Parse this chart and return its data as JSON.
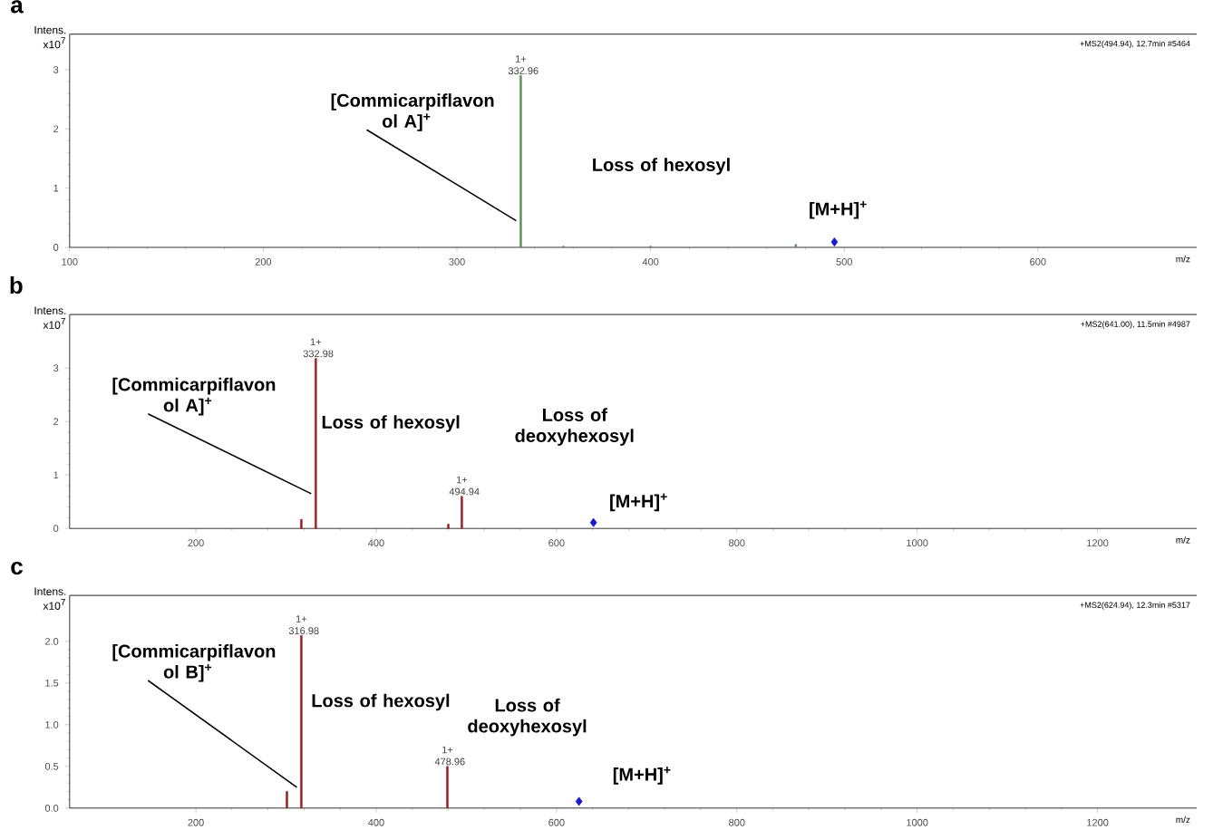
{
  "chart_data": [
    {
      "type": "bar",
      "title": "a",
      "subtitle": "+MS2(494.94), 12.7min #5464",
      "xlabel": "m/z",
      "ylabel": "Intens. x10$^{7}$",
      "xlim": [
        100,
        682
      ],
      "xticks": [
        100,
        200,
        300,
        400,
        500,
        600
      ],
      "ylim": [
        0,
        3.6
      ],
      "yticks": [
        0,
        1,
        2,
        3
      ],
      "series": [
        {
          "color": "#5e8f5e",
          "x": [
            332.96,
            355,
            400,
            475
          ],
          "values": [
            2.9,
            0.02,
            0.02,
            0.05
          ]
        },
        {
          "type": "scatter",
          "marker": "diamond",
          "color": "#1a1acc",
          "x": [
            494.94
          ],
          "values": [
            0.09
          ]
        }
      ],
      "annotations": [
        {
          "text": "[Commicarpiflavon ol A]$^{+}$",
          "x": 332.96,
          "y": 0.45
        },
        {
          "text": "1+ 332.96",
          "x": 332.96,
          "y": 2.9
        },
        "Loss of hexosyl",
        "[M+H]$^{+}$"
      ]
    },
    {
      "type": "bar",
      "title": "b",
      "subtitle": "+MS2(641.00), 11.5min #4987",
      "xlabel": "m/z",
      "ylabel": "Intens. x10$^{7}$",
      "xlim": [
        60,
        1310
      ],
      "xticks": [
        200,
        400,
        600,
        800,
        1000,
        1200
      ],
      "ylim": [
        0,
        4
      ],
      "yticks": [
        0,
        1,
        2,
        3
      ],
      "series": [
        {
          "color": "#9b1b1b",
          "x": [
            317,
            332.98,
            480,
            494.94
          ],
          "values": [
            0.17,
            3.18,
            0.08,
            0.6
          ]
        },
        {
          "type": "scatter",
          "marker": "diamond",
          "color": "#1a1acc",
          "x": [
            641.0
          ],
          "values": [
            0.11
          ]
        }
      ],
      "annotations": [
        {
          "text": "[Commicarpiflavon ol A]$^{+}$",
          "x": 332.98,
          "y": 0.65
        },
        {
          "text": "1+ 332.98",
          "x": 332.98,
          "y": 3.18
        },
        "Loss of hexosyl",
        {
          "text": "1+ 494.94",
          "x": 494.94,
          "y": 0.6
        },
        "Loss of deoxyhexosyl",
        "[M+H]$^{+}$"
      ]
    },
    {
      "type": "bar",
      "title": "c",
      "subtitle": "+MS2(624.94), 12.3min #5317",
      "xlabel": "m/z",
      "ylabel": "Intens. x10$^{7}$",
      "xlim": [
        60,
        1310
      ],
      "xticks": [
        200,
        400,
        600,
        800,
        1000,
        1200
      ],
      "ylim": [
        0,
        2.55
      ],
      "yticks": [
        {
          "value": 0,
          "label": "0.0"
        },
        {
          "value": 0.5,
          "label": "0.5"
        },
        {
          "value": 1,
          "label": "1.0"
        },
        {
          "value": 1.5,
          "label": "1.5"
        },
        {
          "value": 2,
          "label": "2.0"
        }
      ],
      "series": [
        {
          "color": "#9b1b1b",
          "x": [
            301,
            316.98,
            478.96
          ],
          "values": [
            0.2,
            2.07,
            0.5
          ]
        },
        {
          "type": "scatter",
          "marker": "diamond",
          "color": "#1a1acc",
          "x": [
            624.94
          ],
          "values": [
            0.08
          ]
        }
      ],
      "annotations": [
        {
          "text": "[Commicarpiflavon ol B]$^{+}$",
          "x": 316.98,
          "y": 0.25
        },
        {
          "text": "1+ 316.98",
          "x": 316.98,
          "y": 2.07
        },
        "Loss of hexosyl",
        {
          "text": "1+ 478.96",
          "x": 478.96,
          "y": 0.5
        },
        "Loss of deoxyhexosyl",
        "[M+H]$^{+}$"
      ]
    }
  ]
}
